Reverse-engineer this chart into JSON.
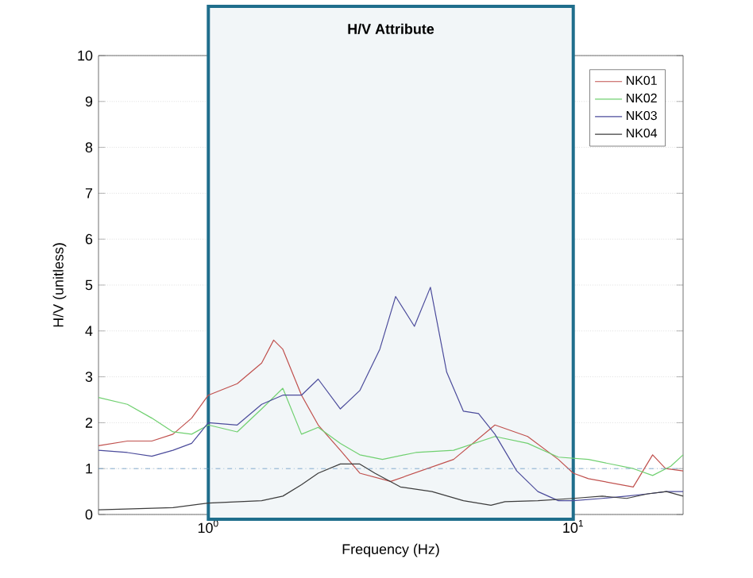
{
  "chart_data": {
    "type": "line",
    "title": "H/V Attribute",
    "xlabel": "Frequency (Hz)",
    "ylabel": "H/V (unitless)",
    "log": "x",
    "xlim": [
      0.5,
      20
    ],
    "xticks": [
      {
        "value": 1,
        "label": "10$^{0}$"
      },
      {
        "value": 10,
        "label": "10$^{1}$"
      }
    ],
    "ylim": [
      0,
      10
    ],
    "yticks": [
      0,
      1,
      2,
      3,
      4,
      5,
      6,
      7,
      8,
      9,
      10
    ],
    "grid": true,
    "legend": "top right",
    "line_style": "solid",
    "marker": "none",
    "series": [
      {
        "name": "NK01",
        "color": "#c0504d",
        "x": [
          0.5,
          0.6,
          0.7,
          0.8,
          0.9,
          1,
          1.2,
          1.4,
          1.51,
          1.6,
          1.8,
          2,
          2.3,
          2.6,
          3.16,
          4.7,
          6.1,
          7.5,
          9.1,
          10,
          11,
          14.6,
          16.5,
          17.9,
          20
        ],
        "values": [
          1.5,
          1.6,
          1.6,
          1.75,
          2.1,
          2.6,
          2.85,
          3.3,
          3.8,
          3.6,
          2.6,
          1.95,
          1.4,
          0.9,
          0.72,
          1.2,
          1.95,
          1.7,
          1.2,
          0.9,
          0.78,
          0.6,
          1.3,
          1.0,
          0.95
        ]
      },
      {
        "name": "NK02",
        "color": "#70d070",
        "x": [
          0.5,
          0.6,
          0.7,
          0.8,
          0.9,
          1,
          1.2,
          1.4,
          1.6,
          1.8,
          2,
          2.3,
          2.6,
          3.0,
          3.7,
          4.7,
          6.1,
          7.5,
          9.1,
          11,
          14.6,
          16.5,
          18.5,
          20
        ],
        "values": [
          2.55,
          2.4,
          2.1,
          1.8,
          1.75,
          1.95,
          1.8,
          2.3,
          2.75,
          1.75,
          1.9,
          1.55,
          1.3,
          1.2,
          1.35,
          1.4,
          1.7,
          1.55,
          1.25,
          1.2,
          1.0,
          0.85,
          1.05,
          1.3
        ]
      },
      {
        "name": "NK03",
        "color": "#4b4b9b",
        "x": [
          0.5,
          0.6,
          0.7,
          0.8,
          0.9,
          1,
          1.2,
          1.4,
          1.6,
          1.8,
          2,
          2.3,
          2.6,
          2.95,
          3.26,
          3.67,
          4.06,
          4.5,
          5,
          5.5,
          6.1,
          7,
          8,
          9.1,
          10,
          12,
          14,
          16,
          18,
          20
        ],
        "values": [
          1.4,
          1.35,
          1.27,
          1.4,
          1.55,
          2.0,
          1.95,
          2.4,
          2.6,
          2.6,
          2.95,
          2.3,
          2.7,
          3.6,
          4.75,
          4.1,
          4.95,
          3.1,
          2.25,
          2.2,
          1.75,
          0.95,
          0.5,
          0.3,
          0.3,
          0.35,
          0.4,
          0.45,
          0.5,
          0.5
        ]
      },
      {
        "name": "NK04",
        "color": "#3c3c3c",
        "x": [
          0.5,
          0.8,
          1,
          1.4,
          1.6,
          1.8,
          2,
          2.3,
          2.6,
          2.86,
          3.36,
          4.1,
          5,
          5.95,
          6.5,
          8,
          10,
          12,
          14,
          16,
          18,
          20
        ],
        "values": [
          0.1,
          0.15,
          0.25,
          0.3,
          0.4,
          0.65,
          0.9,
          1.1,
          1.1,
          0.9,
          0.6,
          0.5,
          0.3,
          0.2,
          0.28,
          0.3,
          0.35,
          0.4,
          0.35,
          0.45,
          0.5,
          0.4
        ]
      }
    ],
    "ref_lines": [
      {
        "axis": "y",
        "value": 1,
        "color": "#6a9ac4",
        "line_style": "dashdot"
      }
    ],
    "bands": [
      {
        "axis": "x",
        "from": 1,
        "to": 10,
        "color": "#1f6e8c"
      }
    ]
  }
}
